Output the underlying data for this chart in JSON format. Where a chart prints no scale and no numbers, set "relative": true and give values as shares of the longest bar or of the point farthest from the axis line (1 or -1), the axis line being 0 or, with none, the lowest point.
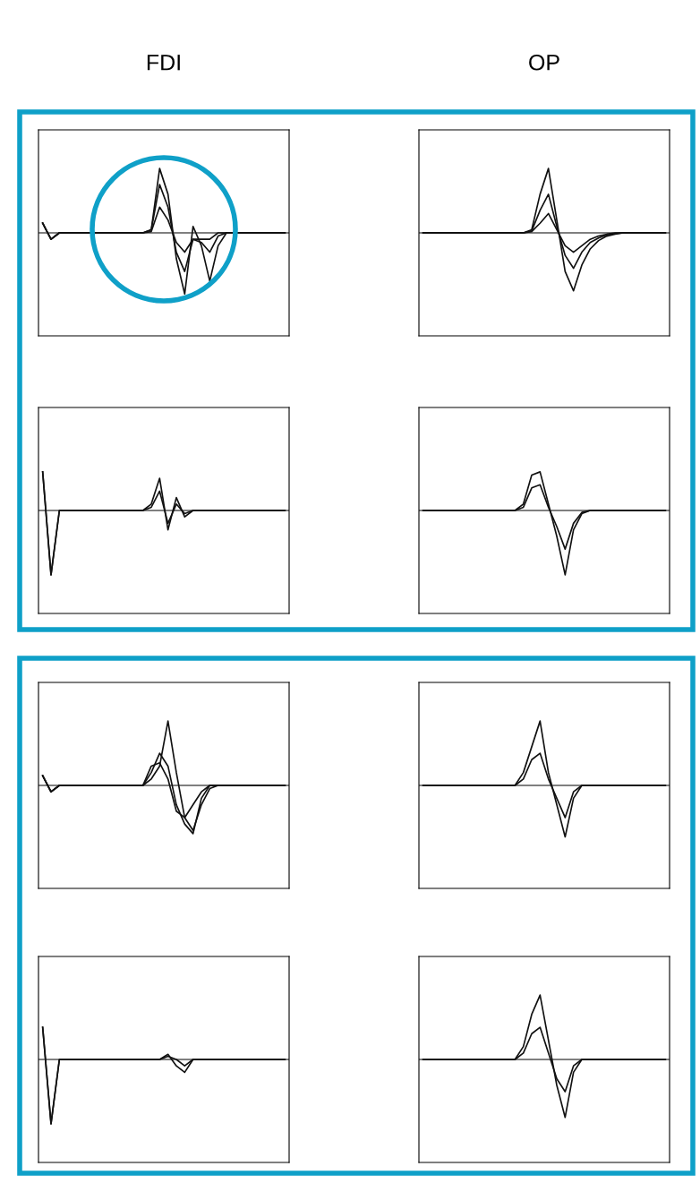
{
  "chart_data": [
    {
      "type": "line",
      "relative": true,
      "title": "FDI",
      "categories": [
        null,
        null,
        null,
        null,
        null,
        null,
        null,
        null,
        null,
        null,
        null,
        null,
        null,
        null,
        null,
        null,
        null,
        null,
        null,
        null,
        null,
        null,
        null,
        null,
        null,
        null,
        null,
        null,
        null,
        null
      ],
      "series": [
        {
          "color": "#111111",
          "values": [
            0.15,
            -0.1,
            0,
            0,
            0,
            0,
            0,
            0,
            0,
            0,
            0,
            0,
            0,
            0.05,
            1,
            0.6,
            -0.4,
            -0.95,
            0.1,
            -0.2,
            -0.75,
            -0.2,
            0,
            0,
            0,
            0,
            0,
            0,
            0,
            0
          ]
        },
        {
          "color": "#111111",
          "values": [
            0.15,
            -0.1,
            0,
            0,
            0,
            0,
            0,
            0,
            0,
            0,
            0,
            0,
            0,
            0.05,
            0.75,
            0.4,
            -0.3,
            -0.6,
            -0.1,
            -0.15,
            -0.3,
            -0.05,
            0,
            0,
            0,
            0,
            0,
            0,
            0,
            0
          ]
        },
        {
          "color": "#111111",
          "values": [
            0.15,
            -0.1,
            0,
            0,
            0,
            0,
            0,
            0,
            0,
            0,
            0,
            0,
            0,
            0.02,
            0.4,
            0.2,
            -0.15,
            -0.3,
            -0.1,
            -0.1,
            -0.1,
            0,
            0,
            0,
            0,
            0,
            0,
            0,
            0,
            0
          ]
        }
      ]
    },
    {
      "type": "line",
      "relative": true,
      "title": "OP",
      "categories": [
        null,
        null,
        null,
        null,
        null,
        null,
        null,
        null,
        null,
        null,
        null,
        null,
        null,
        null,
        null,
        null,
        null,
        null,
        null,
        null,
        null,
        null,
        null,
        null,
        null,
        null,
        null,
        null,
        null,
        null
      ],
      "series": [
        {
          "color": "#111111",
          "values": [
            0,
            0,
            0,
            0,
            0,
            0,
            0,
            0,
            0,
            0,
            0,
            0,
            0,
            0.05,
            0.6,
            1,
            0.2,
            -0.6,
            -0.9,
            -0.5,
            -0.25,
            -0.12,
            -0.05,
            -0.02,
            0,
            0,
            0,
            0,
            0,
            0
          ]
        },
        {
          "color": "#111111",
          "values": [
            0,
            0,
            0,
            0,
            0,
            0,
            0,
            0,
            0,
            0,
            0,
            0,
            0,
            0.03,
            0.35,
            0.6,
            0.1,
            -0.35,
            -0.55,
            -0.3,
            -0.15,
            -0.08,
            -0.03,
            -0.01,
            0,
            0,
            0,
            0,
            0,
            0
          ]
        },
        {
          "color": "#111111",
          "values": [
            0,
            0,
            0,
            0,
            0,
            0,
            0,
            0,
            0,
            0,
            0,
            0,
            0,
            0.02,
            0.15,
            0.3,
            0.05,
            -0.2,
            -0.3,
            -0.2,
            -0.1,
            -0.05,
            -0.02,
            0,
            0,
            0,
            0,
            0,
            0,
            0
          ]
        }
      ]
    },
    {
      "type": "line",
      "relative": true,
      "categories": [
        null,
        null,
        null,
        null,
        null,
        null,
        null,
        null,
        null,
        null,
        null,
        null,
        null,
        null,
        null,
        null,
        null,
        null,
        null,
        null,
        null,
        null,
        null,
        null,
        null,
        null,
        null,
        null,
        null,
        null
      ],
      "series": [
        {
          "color": "#111111",
          "values": [
            0.6,
            -1,
            0,
            0,
            0,
            0,
            0,
            0,
            0,
            0,
            0,
            0,
            0,
            0.1,
            0.5,
            -0.3,
            0.2,
            -0.1,
            0,
            0,
            0,
            0,
            0,
            0,
            0,
            0,
            0,
            0,
            0,
            0
          ]
        },
        {
          "color": "#111111",
          "values": [
            0.6,
            -1,
            0,
            0,
            0,
            0,
            0,
            0,
            0,
            0,
            0,
            0,
            0,
            0.05,
            0.3,
            -0.2,
            0.1,
            -0.05,
            0,
            0,
            0,
            0,
            0,
            0,
            0,
            0,
            0,
            0,
            0,
            0
          ]
        }
      ]
    },
    {
      "type": "line",
      "relative": true,
      "categories": [
        null,
        null,
        null,
        null,
        null,
        null,
        null,
        null,
        null,
        null,
        null,
        null,
        null,
        null,
        null,
        null,
        null,
        null,
        null,
        null,
        null,
        null,
        null,
        null,
        null,
        null,
        null,
        null,
        null,
        null
      ],
      "series": [
        {
          "color": "#111111",
          "values": [
            0,
            0,
            0,
            0,
            0,
            0,
            0,
            0,
            0,
            0,
            0,
            0,
            0.1,
            0.55,
            0.6,
            0.1,
            -0.4,
            -1,
            -0.3,
            -0.05,
            0,
            0,
            0,
            0,
            0,
            0,
            0,
            0,
            0,
            0
          ]
        },
        {
          "color": "#111111",
          "values": [
            0,
            0,
            0,
            0,
            0,
            0,
            0,
            0,
            0,
            0,
            0,
            0,
            0.05,
            0.35,
            0.4,
            0.05,
            -0.25,
            -0.6,
            -0.2,
            -0.03,
            0,
            0,
            0,
            0,
            0,
            0,
            0,
            0,
            0,
            0
          ]
        }
      ]
    },
    {
      "type": "line",
      "relative": true,
      "categories": [
        null,
        null,
        null,
        null,
        null,
        null,
        null,
        null,
        null,
        null,
        null,
        null,
        null,
        null,
        null,
        null,
        null,
        null,
        null,
        null,
        null,
        null,
        null,
        null,
        null,
        null,
        null,
        null,
        null,
        null
      ],
      "series": [
        {
          "color": "#111111",
          "values": [
            0.15,
            -0.1,
            0,
            0,
            0,
            0,
            0,
            0,
            0,
            0,
            0,
            0,
            0,
            0.1,
            0.3,
            1,
            0.2,
            -0.5,
            -0.7,
            -0.3,
            -0.05,
            0,
            0,
            0,
            0,
            0,
            0,
            0,
            0,
            0
          ]
        },
        {
          "color": "#111111",
          "values": [
            0.15,
            -0.1,
            0,
            0,
            0,
            0,
            0,
            0,
            0,
            0,
            0,
            0,
            0,
            0.2,
            0.5,
            0.3,
            -0.3,
            -0.6,
            -0.75,
            -0.2,
            0,
            0,
            0,
            0,
            0,
            0,
            0,
            0,
            0,
            0
          ]
        },
        {
          "color": "#111111",
          "values": [
            0.15,
            -0.1,
            0,
            0,
            0,
            0,
            0,
            0,
            0,
            0,
            0,
            0,
            0,
            0.3,
            0.35,
            0.1,
            -0.4,
            -0.5,
            -0.3,
            -0.1,
            0,
            0,
            0,
            0,
            0,
            0,
            0,
            0,
            0,
            0
          ]
        }
      ]
    },
    {
      "type": "line",
      "relative": true,
      "categories": [
        null,
        null,
        null,
        null,
        null,
        null,
        null,
        null,
        null,
        null,
        null,
        null,
        null,
        null,
        null,
        null,
        null,
        null,
        null,
        null,
        null,
        null,
        null,
        null,
        null,
        null,
        null,
        null,
        null,
        null
      ],
      "series": [
        {
          "color": "#111111",
          "values": [
            0,
            0,
            0,
            0,
            0,
            0,
            0,
            0,
            0,
            0,
            0,
            0,
            0.2,
            0.6,
            1,
            0.2,
            -0.3,
            -0.8,
            -0.2,
            0,
            0,
            0,
            0,
            0,
            0,
            0,
            0,
            0,
            0,
            0
          ]
        },
        {
          "color": "#111111",
          "values": [
            0,
            0,
            0,
            0,
            0,
            0,
            0,
            0,
            0,
            0,
            0,
            0,
            0.1,
            0.4,
            0.5,
            0.1,
            -0.2,
            -0.5,
            -0.1,
            0,
            0,
            0,
            0,
            0,
            0,
            0,
            0,
            0,
            0,
            0
          ]
        }
      ]
    },
    {
      "type": "line",
      "relative": true,
      "categories": [
        null,
        null,
        null,
        null,
        null,
        null,
        null,
        null,
        null,
        null,
        null,
        null,
        null,
        null,
        null,
        null,
        null,
        null,
        null,
        null,
        null,
        null,
        null,
        null,
        null,
        null,
        null,
        null,
        null,
        null
      ],
      "series": [
        {
          "color": "#111111",
          "values": [
            0.5,
            -1,
            0,
            0,
            0,
            0,
            0,
            0,
            0,
            0,
            0,
            0,
            0,
            0,
            0,
            0.08,
            -0.1,
            -0.2,
            0,
            0,
            0,
            0,
            0,
            0,
            0,
            0,
            0,
            0,
            0,
            0
          ]
        },
        {
          "color": "#111111",
          "values": [
            0.5,
            -1,
            0,
            0,
            0,
            0,
            0,
            0,
            0,
            0,
            0,
            0,
            0,
            0,
            0,
            0.05,
            0,
            -0.1,
            0,
            0,
            0,
            0,
            0,
            0,
            0,
            0,
            0,
            0,
            0,
            0
          ]
        }
      ]
    },
    {
      "type": "line",
      "relative": true,
      "categories": [
        null,
        null,
        null,
        null,
        null,
        null,
        null,
        null,
        null,
        null,
        null,
        null,
        null,
        null,
        null,
        null,
        null,
        null,
        null,
        null,
        null,
        null,
        null,
        null,
        null,
        null,
        null,
        null,
        null,
        null
      ],
      "series": [
        {
          "color": "#111111",
          "values": [
            0,
            0,
            0,
            0,
            0,
            0,
            0,
            0,
            0,
            0,
            0,
            0,
            0.2,
            0.7,
            1,
            0.3,
            -0.4,
            -0.9,
            -0.2,
            0,
            0,
            0,
            0,
            0,
            0,
            0,
            0,
            0,
            0,
            0
          ]
        },
        {
          "color": "#111111",
          "values": [
            0,
            0,
            0,
            0,
            0,
            0,
            0,
            0,
            0,
            0,
            0,
            0,
            0.1,
            0.4,
            0.5,
            0.1,
            -0.3,
            -0.5,
            -0.1,
            0,
            0,
            0,
            0,
            0,
            0,
            0,
            0,
            0,
            0,
            0
          ]
        }
      ]
    }
  ]
}
